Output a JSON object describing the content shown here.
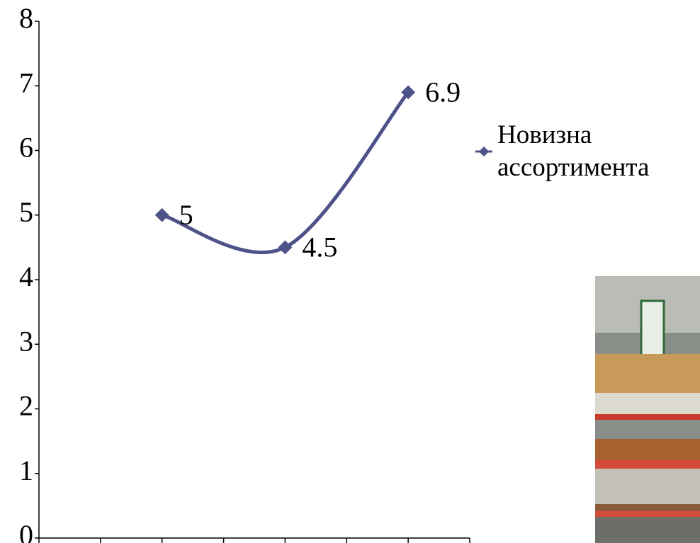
{
  "chart_data": {
    "type": "line",
    "categories": [
      null,
      null,
      null,
      null,
      null,
      null,
      null,
      null
    ],
    "series": [
      {
        "name": "Новизна ассортимента",
        "color": "#4d5289",
        "values": [
          null,
          null,
          5,
          null,
          4.5,
          null,
          6.9,
          null
        ]
      }
    ],
    "ylim": [
      0,
      8
    ],
    "yticks": [
      0,
      1,
      2,
      3,
      4,
      5,
      6,
      7,
      8
    ],
    "smooth": true,
    "legend": "right"
  }
}
